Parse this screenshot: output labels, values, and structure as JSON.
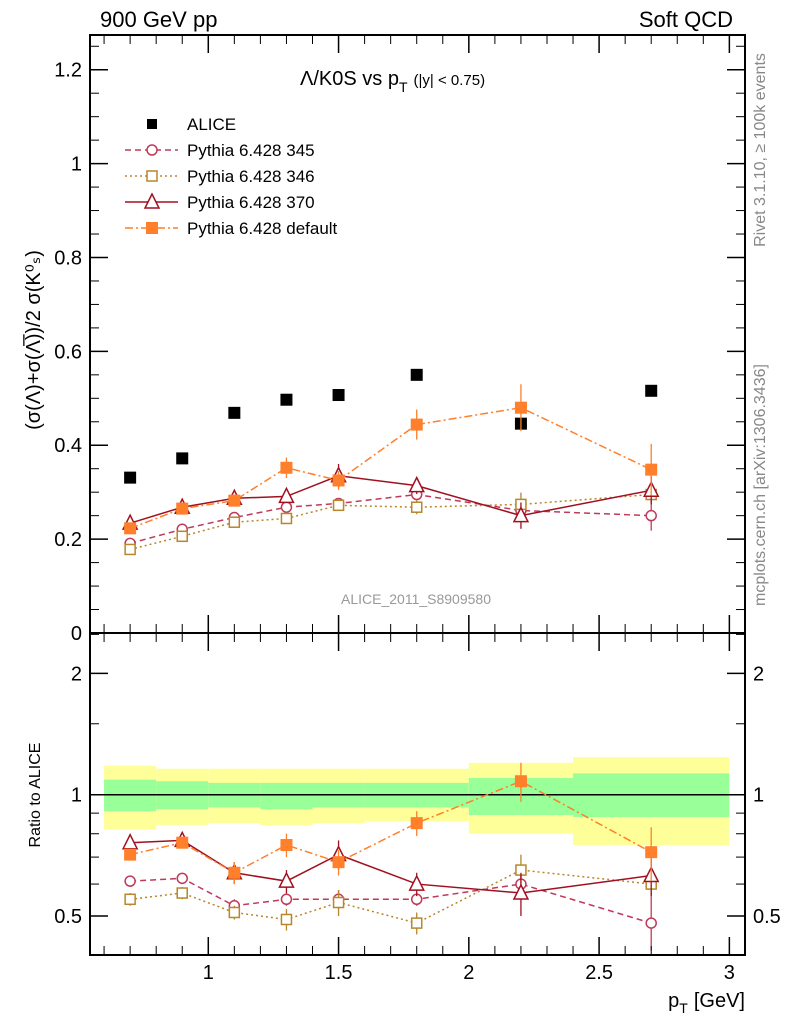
{
  "header": {
    "left": "900 GeV pp",
    "right": "Soft QCD"
  },
  "side_text": {
    "rivet": "Rivet 3.1.10, ≥ 100k events",
    "mcplots": "mcplots.cern.ch [arXiv:1306.3436]"
  },
  "watermark": "ALICE_2011_S8909580",
  "chart_data": [
    {
      "type": "scatter",
      "title_main": "Λ/K0S vs p",
      "title_sub": "T",
      "title_cut": "(|y| < 0.75)",
      "ylabel": "(σ(Λ)+σ(Λ̅))/2 σ(K⁰ₛ)",
      "xlabel": "p",
      "xlabel_sub": "T",
      "xlabel_unit": "[GeV]",
      "xlim": [
        0.546,
        3.06
      ],
      "ylim": [
        0,
        1.274
      ],
      "yticks": [
        0,
        0.2,
        0.4,
        0.6,
        0.8,
        1,
        1.2
      ],
      "ytick_labels": [
        "0",
        "0.2",
        "0.4",
        "0.6",
        "0.8",
        "1",
        "1.2"
      ],
      "legend_position": "top-left",
      "x": [
        0.7,
        0.9,
        1.1,
        1.3,
        1.5,
        1.8,
        2.2,
        2.7
      ],
      "bin_edges": [
        0.6,
        0.8,
        1.0,
        1.2,
        1.4,
        1.6,
        2.0,
        2.4,
        3.0
      ],
      "series": [
        {
          "name": "ALICE",
          "color": "#000000",
          "marker": "filled-square",
          "line": "none",
          "values": [
            0.331,
            0.372,
            0.469,
            0.497,
            0.507,
            0.55,
            0.446,
            0.516
          ],
          "errors": [
            0,
            0,
            0,
            0,
            0,
            0,
            0,
            0
          ]
        },
        {
          "name": "Pythia 6.428 345",
          "color": "#c0395a",
          "marker": "open-circle",
          "line": "dashed",
          "values": [
            0.191,
            0.221,
            0.246,
            0.268,
            0.276,
            0.295,
            0.261,
            0.25
          ],
          "errors": [
            0.006,
            0.006,
            0.008,
            0.008,
            0.01,
            0.01,
            0.02,
            0.032
          ]
        },
        {
          "name": "Pythia 6.428 346",
          "color": "#b8862b",
          "marker": "open-square",
          "line": "dotted",
          "values": [
            0.178,
            0.206,
            0.236,
            0.244,
            0.272,
            0.268,
            0.274,
            0.295
          ],
          "errors": [
            0.005,
            0.006,
            0.008,
            0.01,
            0.012,
            0.015,
            0.025,
            0.02
          ]
        },
        {
          "name": "Pythia 6.428 370",
          "color": "#a01020",
          "marker": "open-triangle",
          "line": "solid",
          "values": [
            0.234,
            0.268,
            0.287,
            0.291,
            0.335,
            0.314,
            0.25,
            0.304
          ],
          "errors": [
            0.006,
            0.007,
            0.012,
            0.012,
            0.025,
            0.018,
            0.028,
            0.03
          ]
        },
        {
          "name": "Pythia 6.428 default",
          "color": "#ff7f2a",
          "marker": "filled-square",
          "line": "dashdot",
          "values": [
            0.223,
            0.265,
            0.282,
            0.352,
            0.325,
            0.444,
            0.48,
            0.348
          ],
          "errors": [
            0.008,
            0.008,
            0.012,
            0.022,
            0.02,
            0.032,
            0.05,
            0.055
          ]
        }
      ]
    },
    {
      "type": "scatter",
      "ylabel": "Ratio to ALICE",
      "yscale": "log",
      "ylim": [
        0.4,
        2.52
      ],
      "yticks": [
        0.5,
        1,
        2
      ],
      "ytick_labels": [
        "0.5",
        "1",
        "2"
      ],
      "xticks": [
        1,
        1.5,
        2,
        2.5,
        3
      ],
      "xtick_labels": [
        "1",
        "1.5",
        "2",
        "2.5",
        "3"
      ],
      "band_colors": {
        "total": "#ffff99",
        "stat": "#99ff99"
      },
      "bands": {
        "total_up": [
          1.18,
          1.16,
          1.16,
          1.16,
          1.16,
          1.16,
          1.2,
          1.24
        ],
        "total_down": [
          0.82,
          0.84,
          0.85,
          0.84,
          0.85,
          0.86,
          0.8,
          0.75
        ],
        "stat_up": [
          1.09,
          1.08,
          1.07,
          1.07,
          1.07,
          1.07,
          1.1,
          1.13
        ],
        "stat_down": [
          0.91,
          0.92,
          0.93,
          0.92,
          0.93,
          0.93,
          0.89,
          0.88
        ]
      },
      "ratio_series": [
        {
          "name": "Pythia 6.428 345",
          "values": [
            0.61,
            0.62,
            0.53,
            0.55,
            0.55,
            0.55,
            0.6,
            0.48
          ],
          "errors": [
            0.02,
            0.02,
            0.02,
            0.02,
            0.03,
            0.02,
            0.05,
            0.09
          ]
        },
        {
          "name": "Pythia 6.428 346",
          "values": [
            0.55,
            0.57,
            0.51,
            0.49,
            0.54,
            0.48,
            0.65,
            0.6
          ],
          "errors": [
            0.02,
            0.02,
            0.02,
            0.03,
            0.04,
            0.03,
            0.06,
            0.04
          ]
        },
        {
          "name": "Pythia 6.428 370",
          "values": [
            0.76,
            0.77,
            0.64,
            0.61,
            0.71,
            0.6,
            0.57,
            0.63
          ],
          "errors": [
            0.02,
            0.02,
            0.04,
            0.04,
            0.06,
            0.04,
            0.07,
            0.07
          ]
        },
        {
          "name": "Pythia 6.428 default",
          "values": [
            0.71,
            0.76,
            0.64,
            0.75,
            0.68,
            0.85,
            1.08,
            0.72
          ],
          "errors": [
            0.02,
            0.02,
            0.04,
            0.05,
            0.05,
            0.06,
            0.12,
            0.11
          ]
        }
      ]
    }
  ]
}
